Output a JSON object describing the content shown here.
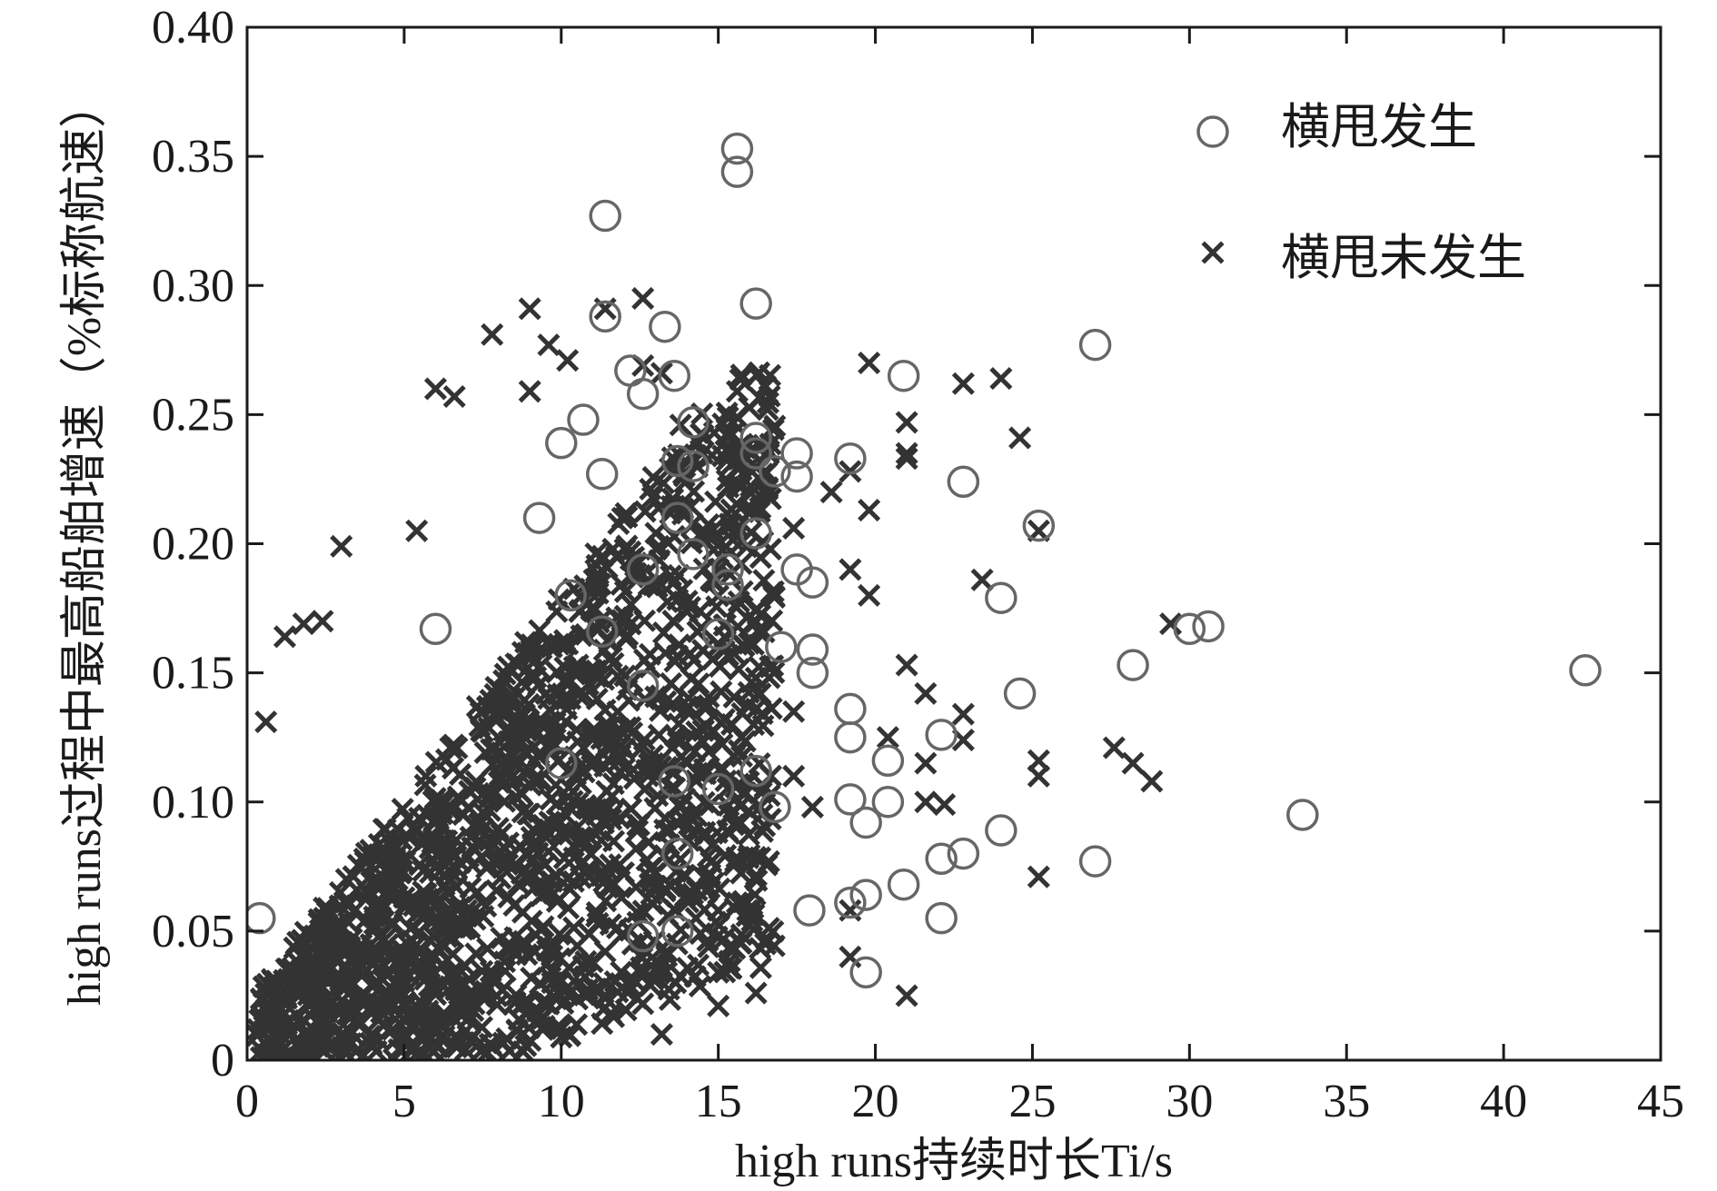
{
  "chart_data": {
    "type": "scatter",
    "title": "",
    "xlabel": "high runs持续时长Ti/s",
    "ylabel": "high runs过程中最高船舶增速（%标称航速）",
    "xlim": [
      0,
      45
    ],
    "ylim": [
      0,
      0.4
    ],
    "xticks": [
      "0",
      "5",
      "10",
      "15",
      "20",
      "25",
      "30",
      "35",
      "40",
      "45"
    ],
    "yticks": [
      "0",
      "0.05",
      "0.10",
      "0.15",
      "0.20",
      "0.25",
      "0.30",
      "0.35",
      "0.40"
    ],
    "grid": false,
    "legend_position": "top-right",
    "series": [
      {
        "name": "横甩发生",
        "marker": "circle",
        "color": "#666666",
        "points": [
          [
            0.4,
            0.055
          ],
          [
            15.6,
            0.353
          ],
          [
            15.6,
            0.344
          ],
          [
            11.4,
            0.327
          ],
          [
            16.2,
            0.293
          ],
          [
            11.4,
            0.288
          ],
          [
            13.3,
            0.284
          ],
          [
            12.2,
            0.267
          ],
          [
            13.6,
            0.265
          ],
          [
            12.6,
            0.258
          ],
          [
            27.0,
            0.277
          ],
          [
            20.9,
            0.265
          ],
          [
            10.7,
            0.248
          ],
          [
            14.2,
            0.247
          ],
          [
            10.0,
            0.239
          ],
          [
            16.2,
            0.241
          ],
          [
            16.2,
            0.235
          ],
          [
            17.5,
            0.235
          ],
          [
            13.7,
            0.232
          ],
          [
            14.2,
            0.23
          ],
          [
            11.3,
            0.227
          ],
          [
            16.8,
            0.228
          ],
          [
            17.5,
            0.226
          ],
          [
            19.2,
            0.233
          ],
          [
            22.8,
            0.224
          ],
          [
            9.3,
            0.21
          ],
          [
            13.7,
            0.21
          ],
          [
            16.2,
            0.204
          ],
          [
            25.2,
            0.207
          ],
          [
            12.6,
            0.19
          ],
          [
            14.2,
            0.196
          ],
          [
            15.3,
            0.19
          ],
          [
            15.3,
            0.184
          ],
          [
            17.5,
            0.19
          ],
          [
            18.0,
            0.185
          ],
          [
            10.3,
            0.18
          ],
          [
            24.0,
            0.179
          ],
          [
            6.0,
            0.167
          ],
          [
            11.3,
            0.166
          ],
          [
            15.0,
            0.165
          ],
          [
            17.0,
            0.16
          ],
          [
            18.0,
            0.159
          ],
          [
            18.0,
            0.15
          ],
          [
            30.0,
            0.167
          ],
          [
            30.6,
            0.168
          ],
          [
            28.2,
            0.153
          ],
          [
            42.6,
            0.151
          ],
          [
            12.6,
            0.145
          ],
          [
            19.2,
            0.136
          ],
          [
            19.2,
            0.125
          ],
          [
            22.1,
            0.126
          ],
          [
            24.6,
            0.142
          ],
          [
            16.2,
            0.112
          ],
          [
            16.8,
            0.098
          ],
          [
            10.0,
            0.115
          ],
          [
            13.6,
            0.108
          ],
          [
            15.0,
            0.105
          ],
          [
            20.4,
            0.116
          ],
          [
            19.2,
            0.101
          ],
          [
            20.4,
            0.1
          ],
          [
            19.7,
            0.092
          ],
          [
            24.0,
            0.089
          ],
          [
            22.8,
            0.08
          ],
          [
            22.1,
            0.078
          ],
          [
            20.9,
            0.068
          ],
          [
            19.7,
            0.064
          ],
          [
            19.2,
            0.061
          ],
          [
            17.9,
            0.058
          ],
          [
            13.7,
            0.08
          ],
          [
            12.6,
            0.048
          ],
          [
            13.7,
            0.05
          ],
          [
            22.1,
            0.055
          ],
          [
            19.7,
            0.034
          ],
          [
            27.0,
            0.077
          ],
          [
            33.6,
            0.095
          ]
        ]
      },
      {
        "name": "横甩未发生",
        "marker": "x",
        "color": "#333333",
        "points": [
          [
            0.6,
            0.131
          ],
          [
            1.2,
            0.164
          ],
          [
            1.8,
            0.169
          ],
          [
            2.4,
            0.17
          ],
          [
            3.0,
            0.199
          ],
          [
            5.4,
            0.205
          ],
          [
            7.8,
            0.281
          ],
          [
            9.0,
            0.291
          ],
          [
            9.6,
            0.277
          ],
          [
            10.2,
            0.271
          ],
          [
            11.4,
            0.291
          ],
          [
            12.6,
            0.295
          ],
          [
            12.6,
            0.269
          ],
          [
            13.2,
            0.266
          ],
          [
            9.0,
            0.259
          ],
          [
            6.0,
            0.26
          ],
          [
            6.6,
            0.257
          ],
          [
            15.6,
            0.259
          ],
          [
            15.6,
            0.249
          ],
          [
            13.8,
            0.246
          ],
          [
            15.6,
            0.223
          ],
          [
            17.4,
            0.206
          ],
          [
            18.6,
            0.22
          ],
          [
            19.2,
            0.228
          ],
          [
            19.8,
            0.213
          ],
          [
            19.2,
            0.19
          ],
          [
            19.8,
            0.18
          ],
          [
            19.8,
            0.27
          ],
          [
            21.0,
            0.247
          ],
          [
            21.0,
            0.235
          ],
          [
            21.0,
            0.233
          ],
          [
            22.8,
            0.262
          ],
          [
            24.0,
            0.264
          ],
          [
            24.6,
            0.241
          ],
          [
            23.4,
            0.186
          ],
          [
            25.2,
            0.205
          ],
          [
            29.4,
            0.169
          ],
          [
            21.0,
            0.153
          ],
          [
            21.6,
            0.142
          ],
          [
            20.4,
            0.125
          ],
          [
            22.8,
            0.134
          ],
          [
            22.8,
            0.124
          ],
          [
            21.6,
            0.115
          ],
          [
            21.6,
            0.1
          ],
          [
            22.2,
            0.099
          ],
          [
            25.2,
            0.116
          ],
          [
            25.2,
            0.11
          ],
          [
            27.6,
            0.121
          ],
          [
            28.2,
            0.115
          ],
          [
            28.8,
            0.108
          ],
          [
            25.2,
            0.071
          ],
          [
            19.2,
            0.058
          ],
          [
            19.2,
            0.04
          ],
          [
            21.0,
            0.025
          ],
          [
            16.2,
            0.026
          ],
          [
            15.0,
            0.034
          ],
          [
            15.0,
            0.021
          ],
          [
            13.2,
            0.01
          ],
          [
            11.4,
            0.024
          ],
          [
            11.4,
            0.042
          ],
          [
            15.6,
            0.061
          ],
          [
            15.0,
            0.058
          ],
          [
            16.2,
            0.148
          ],
          [
            16.2,
            0.136
          ],
          [
            17.4,
            0.135
          ],
          [
            17.4,
            0.11
          ],
          [
            18.0,
            0.098
          ]
        ]
      }
    ]
  }
}
